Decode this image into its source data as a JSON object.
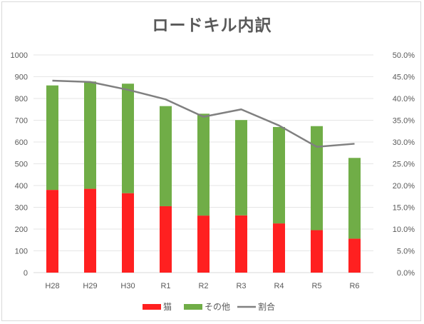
{
  "chart_data": {
    "type": "bar",
    "title": "ロードキル内訳",
    "categories": [
      "H28",
      "H29",
      "H30",
      "R1",
      "R2",
      "R3",
      "R4",
      "R5",
      "R6"
    ],
    "series": [
      {
        "name": "猫",
        "type": "bar",
        "stacked": true,
        "axis": "left",
        "color": "#ff2020",
        "values": [
          380,
          385,
          365,
          305,
          262,
          263,
          226,
          195,
          156
        ]
      },
      {
        "name": "その他",
        "type": "bar",
        "stacked": true,
        "axis": "left",
        "color": "#70ad47",
        "values": [
          480,
          493,
          503,
          460,
          468,
          438,
          443,
          478,
          371
        ]
      },
      {
        "name": "割合",
        "type": "line",
        "axis": "right",
        "color": "#808080",
        "values": [
          0.441,
          0.438,
          0.42,
          0.398,
          0.358,
          0.375,
          0.338,
          0.289,
          0.296
        ]
      }
    ],
    "ylim_left": [
      0,
      1000
    ],
    "yticks_left": [
      "0",
      "100",
      "200",
      "300",
      "400",
      "500",
      "600",
      "700",
      "800",
      "900",
      "1000"
    ],
    "ylim_right": [
      0,
      0.5
    ],
    "yticks_right": [
      "0.0%",
      "5.0%",
      "10.0%",
      "15.0%",
      "20.0%",
      "25.0%",
      "30.0%",
      "35.0%",
      "40.0%",
      "45.0%",
      "50.0%"
    ],
    "grid": true,
    "legend_position": "bottom"
  }
}
